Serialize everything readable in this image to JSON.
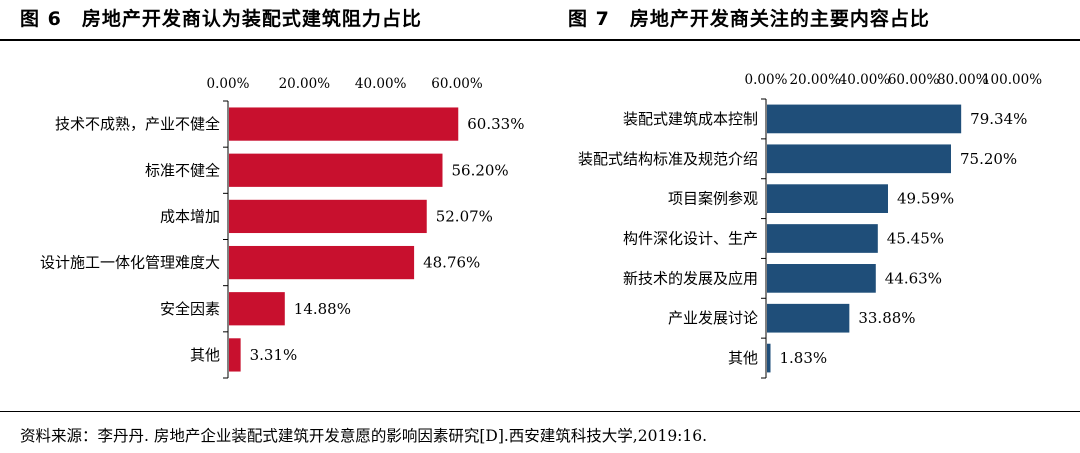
{
  "figures": {
    "left_title": "图 6　房地产开发商认为装配式建筑阻力占比",
    "right_title": "图 7　房地产开发商关注的主要内容占比"
  },
  "source_note": "资料来源：李丹丹. 房地产企业装配式建筑开发意愿的影响因素研究[D].西安建筑科技大学,2019:16.",
  "colors": {
    "left_bar": "#c8102e",
    "right_bar": "#1f4e79"
  },
  "chart_data": [
    {
      "type": "bar",
      "orientation": "horizontal",
      "title": "图 6　房地产开发商认为装配式建筑阻力占比",
      "categories": [
        "技术不成熟，产业不健全",
        "标准不健全",
        "成本增加",
        "设计施工一体化管理难度大",
        "安全因素",
        "其他"
      ],
      "values": [
        60.33,
        56.2,
        52.07,
        48.76,
        14.88,
        3.31
      ],
      "value_labels": [
        "60.33%",
        "56.20%",
        "52.07%",
        "48.76%",
        "14.88%",
        "3.31%"
      ],
      "xlim": [
        0,
        60
      ],
      "x_ticks": [
        "0.00%",
        "20.00%",
        "40.00%",
        "60.00%"
      ],
      "axis_position": "top",
      "grid": false,
      "color": "#c8102e"
    },
    {
      "type": "bar",
      "orientation": "horizontal",
      "title": "图 7　房地产开发商关注的主要内容占比",
      "categories": [
        "装配式建筑成本控制",
        "装配式结构标准及规范介绍",
        "项目案例参观",
        "构件深化设计、生产",
        "新技术的发展及应用",
        "产业发展讨论",
        "其他"
      ],
      "values": [
        79.34,
        75.2,
        49.59,
        45.45,
        44.63,
        33.88,
        1.83
      ],
      "value_labels": [
        "79.34%",
        "75.20%",
        "49.59%",
        "45.45%",
        "44.63%",
        "33.88%",
        "1.83%"
      ],
      "xlim": [
        0,
        100
      ],
      "x_ticks": [
        "0.00%",
        "20.00%",
        "40.00%",
        "60.00%",
        "80.00%",
        "100.00%"
      ],
      "axis_position": "top",
      "grid": false,
      "color": "#1f4e79"
    }
  ]
}
